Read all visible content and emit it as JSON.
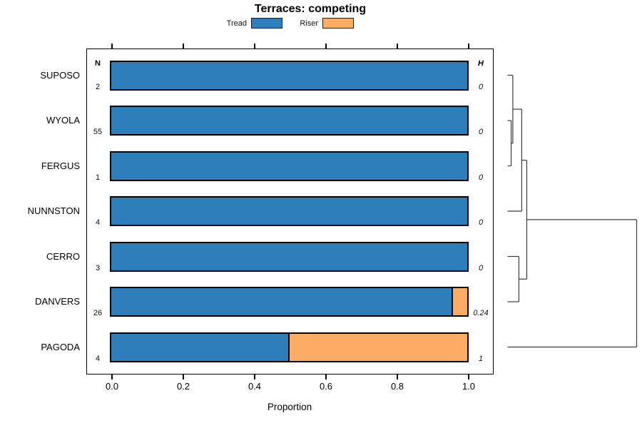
{
  "title": "Terraces: competing",
  "legend": {
    "items": [
      {
        "label": "Tread",
        "color": "#2E7EBC"
      },
      {
        "label": "Riser",
        "color": "#FCAC63"
      }
    ]
  },
  "columns": {
    "n_header": "N",
    "h_header": "H"
  },
  "axis": {
    "label": "Proportion",
    "ticks": [
      "0.0",
      "0.2",
      "0.4",
      "0.6",
      "0.8",
      "1.0"
    ]
  },
  "chart_data": {
    "type": "bar",
    "orientation": "horizontal",
    "stacked": true,
    "title": "Terraces: competing",
    "xlabel": "Proportion",
    "xlim": [
      0,
      1
    ],
    "grid": false,
    "legend_position": "top",
    "categories": [
      "SUPOSO",
      "WYOLA",
      "FERGUS",
      "NUNNSTON",
      "CERRO",
      "DANVERS",
      "PAGODA"
    ],
    "series": [
      {
        "name": "Tread",
        "color": "#2E7EBC",
        "values": [
          1,
          1,
          1,
          1,
          1,
          0.96,
          0.5
        ]
      },
      {
        "name": "Riser",
        "color": "#FCAC63",
        "values": [
          0,
          0,
          0,
          0,
          0,
          0.04,
          0.5
        ]
      }
    ],
    "n_values": [
      "2",
      "55",
      "1",
      "4",
      "3",
      "26",
      "4"
    ],
    "h_values": [
      "0",
      "0",
      "0",
      "0",
      "0",
      "0.24",
      "1"
    ],
    "dendrogram": {
      "leaf_order": [
        "SUPOSO",
        "WYOLA",
        "FERGUS",
        "NUNNSTON",
        "CERRO",
        "DANVERS",
        "PAGODA"
      ],
      "merges": [
        {
          "a": "L1",
          "b": "L2",
          "height": 0.028
        },
        {
          "a": "L0",
          "b": "M0",
          "height": 0.041
        },
        {
          "a": "M1",
          "b": "L3",
          "height": 0.11
        },
        {
          "a": "L4",
          "b": "L5",
          "height": 0.088
        },
        {
          "a": "M2",
          "b": "M3",
          "height": 0.149
        },
        {
          "a": "M4",
          "b": "L6",
          "height": 1.0
        }
      ]
    }
  }
}
